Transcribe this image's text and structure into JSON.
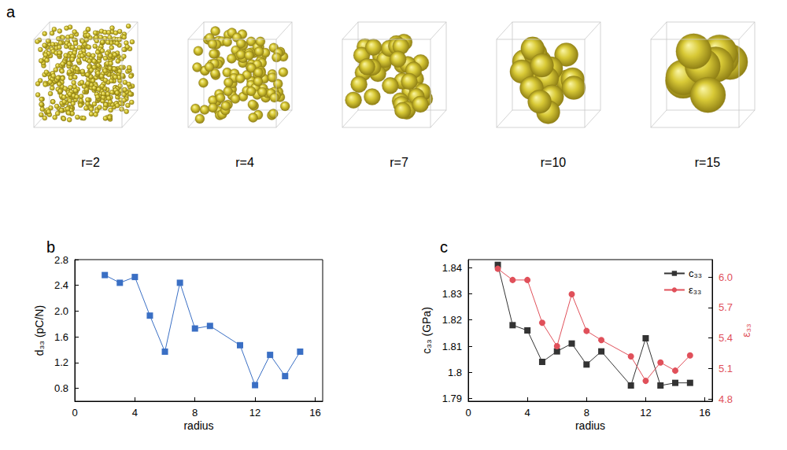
{
  "sphere_boxes": {
    "panel": "a",
    "images": [
      {
        "label": "r=2",
        "radius": 2
      },
      {
        "label": "r=4",
        "radius": 4
      },
      {
        "label": "r=7",
        "radius": 7
      },
      {
        "label": "r=10",
        "radius": 10
      },
      {
        "label": "r=15",
        "radius": 15
      }
    ]
  },
  "chart_data": [
    {
      "panel": "b",
      "type": "line",
      "x_label": "radius",
      "y_label": "d₃₃ (pC/N)",
      "x": [
        2,
        3,
        4,
        5,
        6,
        7,
        8,
        9,
        11,
        12,
        13,
        14,
        15
      ],
      "values": [
        2.56,
        2.44,
        2.53,
        1.93,
        1.37,
        2.44,
        1.73,
        1.77,
        1.47,
        0.85,
        1.32,
        0.99,
        1.37
      ],
      "color": "#3a6fc4",
      "marker": "square",
      "xlim": [
        0,
        16.5
      ],
      "xticks": [
        0,
        4,
        8,
        12,
        16
      ],
      "ylim": [
        0.6,
        2.8
      ],
      "yticks": [
        0.8,
        1.2,
        1.6,
        {
          "value": 2,
          "label": "2.0"
        },
        2.4,
        2.8
      ],
      "grid": false
    },
    {
      "panel": "c",
      "type": "line",
      "x_label": "radius",
      "y_label": "c₃₃ (GPa)",
      "y2_label": "ε₃₃",
      "x": [
        2,
        3,
        4,
        5,
        6,
        7,
        8,
        9,
        11,
        12,
        13,
        14,
        15
      ],
      "series": [
        {
          "name": "c₃₃",
          "color": "#333333",
          "marker": "square",
          "values": [
            1.841,
            1.818,
            1.816,
            1.804,
            1.808,
            1.811,
            1.803,
            1.808,
            1.795,
            1.813,
            1.795,
            1.796,
            1.796
          ]
        },
        {
          "name": "ε₃₃",
          "color": "#e0505a",
          "marker": "circle",
          "axis": "y2",
          "values": [
            6.08,
            5.97,
            5.97,
            5.55,
            5.32,
            5.83,
            5.47,
            5.38,
            5.22,
            4.98,
            5.16,
            5.08,
            5.23
          ]
        }
      ],
      "xlim": [
        0,
        16.5
      ],
      "xticks": [
        0,
        4,
        8,
        12,
        16
      ],
      "ylim": [
        1.789,
        1.843
      ],
      "yticks": [
        1.79,
        1.8,
        1.81,
        1.82,
        1.83,
        1.84
      ],
      "y2lim": [
        4.78,
        6.17
      ],
      "y2ticks": [
        4.8,
        5.1,
        5.4,
        5.7,
        {
          "value": 6,
          "label": "6.0"
        }
      ],
      "legend": "upper right",
      "grid": false
    }
  ]
}
